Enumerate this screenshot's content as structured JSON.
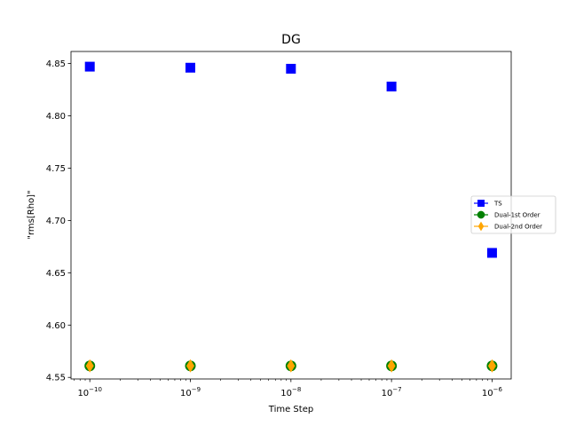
{
  "chart_data": {
    "type": "scatter",
    "title": "DG",
    "xlabel": "Time Step",
    "ylabel": "\"rms[Rho]\"",
    "xscale": "log",
    "yscale": "linear",
    "x": [
      1e-10,
      1e-09,
      1e-08,
      1e-07,
      1e-06
    ],
    "xticks": [
      {
        "value": 1e-10,
        "base": "10",
        "exp": "−10"
      },
      {
        "value": 1e-09,
        "base": "10",
        "exp": "−9"
      },
      {
        "value": 1e-08,
        "base": "10",
        "exp": "−8"
      },
      {
        "value": 1e-07,
        "base": "10",
        "exp": "−7"
      },
      {
        "value": 1e-06,
        "base": "10",
        "exp": "−6"
      }
    ],
    "yticks": [
      "4.55",
      "4.60",
      "4.65",
      "4.70",
      "4.75",
      "4.80",
      "4.85"
    ],
    "xlim": [
      6.5e-11,
      1.55e-06
    ],
    "ylim": [
      4.5485,
      4.8615
    ],
    "grid": false,
    "legend_position": "right",
    "series": [
      {
        "name": "TS",
        "marker": "square",
        "color": "#0000ff",
        "values": [
          4.847,
          4.846,
          4.845,
          4.828,
          4.669
        ]
      },
      {
        "name": "Dual-1st Order",
        "marker": "circle",
        "color": "#008000",
        "values": [
          4.561,
          4.561,
          4.561,
          4.561,
          4.561
        ]
      },
      {
        "name": "Dual-2nd Order",
        "marker": "diamond",
        "color": "#ffa500",
        "values": [
          4.561,
          4.561,
          4.561,
          4.561,
          4.561
        ]
      }
    ]
  }
}
